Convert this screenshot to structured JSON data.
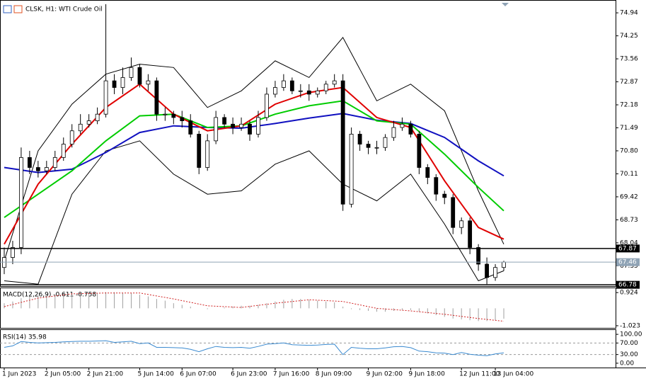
{
  "chart_data": [
    {
      "type": "candlestick",
      "title": "CLSK, H1: WTI Crude Oil",
      "categories": [
        "1 Jun 2023",
        null,
        null,
        null,
        null,
        "2 Jun 05:00",
        null,
        null,
        null,
        null,
        "2 Jun 21:00",
        null,
        null,
        null,
        null,
        null,
        "5 Jun 14:00",
        null,
        null,
        null,
        null,
        "6 Jun 07:00",
        null,
        null,
        null,
        null,
        null,
        "6 Jun 23:00",
        null,
        null,
        null,
        null,
        "7 Jun 16:00",
        null,
        null,
        null,
        null,
        "8 Jun 09:00",
        null,
        null,
        null,
        null,
        null,
        "9 Jun 02:00",
        null,
        null,
        null,
        null,
        "9 Jun 18:00",
        null,
        null,
        null,
        null,
        null,
        "12 Jun 11:00",
        null,
        null,
        null,
        "13 Jun 04:00",
        null
      ],
      "open": [
        67.3,
        67.6,
        67.9,
        70.6,
        70.3,
        70.2,
        70.3,
        70.6,
        71.0,
        71.4,
        71.6,
        71.7,
        71.9,
        72.9,
        72.7,
        73.0,
        73.3,
        72.8,
        72.9,
        71.9,
        71.9,
        71.8,
        71.7,
        71.3,
        70.3,
        71.1,
        71.8,
        71.6,
        71.5,
        71.6,
        71.3,
        71.8,
        72.5,
        72.7,
        72.9,
        72.6,
        72.6,
        72.5,
        72.6,
        72.8,
        72.9,
        69.2,
        71.3,
        71.0,
        70.9,
        70.9,
        71.2,
        71.5,
        71.6,
        71.3,
        70.3,
        70.0,
        69.5,
        69.4,
        68.5,
        68.7,
        67.9,
        67.4,
        67.0,
        67.3
      ],
      "high": [
        67.9,
        68.1,
        70.9,
        70.8,
        70.5,
        70.5,
        70.8,
        71.2,
        71.6,
        71.9,
        71.9,
        72.1,
        75.2,
        73.1,
        73.3,
        73.6,
        73.4,
        73.1,
        73.0,
        72.1,
        72.0,
        72.0,
        71.9,
        71.4,
        71.3,
        72.0,
        71.9,
        71.8,
        71.8,
        71.7,
        72.0,
        72.7,
        72.9,
        73.1,
        73.0,
        72.8,
        72.8,
        72.7,
        72.9,
        73.1,
        73.1,
        71.5,
        71.4,
        71.1,
        71.1,
        71.3,
        71.7,
        71.8,
        71.7,
        71.4,
        70.4,
        70.1,
        69.6,
        69.5,
        68.8,
        68.8,
        68.0,
        67.6,
        67.4,
        67.5
      ],
      "low": [
        67.1,
        67.4,
        67.7,
        70.1,
        70.0,
        70.1,
        70.2,
        70.5,
        70.9,
        71.3,
        71.5,
        71.6,
        71.8,
        72.5,
        72.5,
        72.9,
        72.7,
        72.6,
        71.7,
        71.7,
        71.6,
        71.5,
        71.2,
        70.1,
        70.2,
        71.0,
        71.5,
        71.3,
        71.4,
        71.1,
        71.2,
        71.7,
        72.4,
        72.6,
        72.5,
        72.4,
        72.3,
        72.4,
        72.5,
        72.7,
        69.0,
        69.1,
        70.8,
        70.7,
        70.7,
        70.8,
        71.1,
        71.4,
        71.2,
        70.1,
        69.8,
        69.3,
        69.2,
        68.3,
        68.3,
        67.7,
        67.2,
        66.8,
        66.9,
        67.2
      ],
      "close": [
        67.6,
        67.9,
        70.6,
        70.3,
        70.2,
        70.3,
        70.6,
        71.0,
        71.4,
        71.6,
        71.7,
        71.9,
        72.9,
        72.7,
        73.0,
        73.3,
        72.8,
        72.9,
        71.9,
        71.9,
        71.8,
        71.7,
        71.3,
        70.3,
        71.1,
        71.8,
        71.6,
        71.5,
        71.6,
        71.3,
        71.8,
        72.5,
        72.7,
        72.9,
        72.6,
        72.6,
        72.5,
        72.6,
        72.8,
        72.9,
        69.2,
        71.3,
        71.0,
        70.9,
        70.9,
        71.2,
        71.5,
        71.6,
        71.3,
        70.3,
        70.0,
        69.5,
        69.4,
        68.5,
        68.7,
        67.9,
        67.4,
        67.0,
        67.3,
        67.46
      ],
      "candle_color": "#000000",
      "ylim": [
        66.72,
        75.24
      ],
      "yticks": [
        74.94,
        74.25,
        73.56,
        72.87,
        72.18,
        71.49,
        {
          "value": 70.8,
          "label": "70.80"
        },
        70.11,
        69.42,
        68.73,
        68.04,
        67.35
      ],
      "series": [
        {
          "color": "#000000",
          "x": [
            0,
            4,
            8,
            12,
            16,
            20,
            24,
            28,
            32,
            36,
            40,
            44,
            48,
            52,
            56,
            59
          ],
          "values": [
            67.5,
            70.8,
            72.2,
            73.1,
            73.4,
            73.3,
            72.1,
            72.6,
            73.5,
            73.0,
            74.2,
            72.3,
            72.8,
            72.0,
            69.6,
            68.0
          ]
        },
        {
          "color": "#000000",
          "x": [
            0,
            4,
            8,
            12,
            16,
            20,
            24,
            28,
            32,
            36,
            40,
            44,
            48,
            52,
            56,
            59
          ],
          "values": [
            66.9,
            66.8,
            69.5,
            70.8,
            71.1,
            70.1,
            69.5,
            69.6,
            70.4,
            70.8,
            69.8,
            69.3,
            70.1,
            68.6,
            66.9,
            67.2
          ]
        },
        {
          "color": "#1010c0",
          "x": [
            0,
            4,
            8,
            12,
            16,
            20,
            24,
            28,
            32,
            36,
            40,
            44,
            48,
            52,
            56,
            59
          ],
          "values": [
            70.3,
            70.15,
            70.25,
            70.75,
            71.35,
            71.55,
            71.5,
            71.48,
            71.62,
            71.78,
            71.92,
            71.72,
            71.62,
            71.2,
            70.5,
            70.05
          ]
        },
        {
          "color": "#00cc00",
          "x": [
            0,
            4,
            8,
            12,
            16,
            20,
            24,
            28,
            32,
            36,
            40,
            44,
            48,
            52,
            56,
            59
          ],
          "values": [
            68.8,
            69.5,
            70.2,
            71.1,
            71.85,
            71.9,
            71.5,
            71.55,
            71.9,
            72.15,
            72.3,
            71.7,
            71.6,
            70.7,
            69.7,
            69.0
          ]
        },
        {
          "color": "#e00000",
          "x": [
            0,
            4,
            8,
            12,
            16,
            20,
            24,
            28,
            32,
            36,
            40,
            44,
            48,
            52,
            56,
            59
          ],
          "values": [
            68.0,
            69.8,
            71.0,
            72.1,
            72.8,
            71.9,
            71.4,
            71.55,
            72.2,
            72.55,
            72.7,
            71.8,
            71.5,
            69.9,
            68.5,
            68.15
          ]
        }
      ],
      "levels": [
        67.87,
        67.46,
        66.78
      ],
      "level_colors": [
        "#000000",
        "#8fa3b5",
        "#000000"
      ]
    },
    {
      "type": "macd",
      "title": "MACD(12,26,9) -0.611 -0.758",
      "histogram": [
        0.3,
        0.4,
        0.6,
        0.7,
        0.75,
        0.8,
        0.8,
        0.85,
        0.9,
        0.9,
        0.9,
        0.9,
        0.95,
        0.95,
        0.9,
        0.9,
        0.8,
        0.7,
        0.55,
        0.45,
        0.3,
        0.2,
        0.1,
        0.0,
        -0.05,
        0.0,
        0.05,
        0.1,
        0.15,
        0.15,
        0.2,
        0.3,
        0.4,
        0.5,
        0.55,
        0.55,
        0.5,
        0.45,
        0.4,
        0.35,
        0.1,
        -0.05,
        -0.1,
        -0.15,
        -0.2,
        -0.2,
        -0.15,
        -0.1,
        -0.1,
        -0.2,
        -0.3,
        -0.4,
        -0.5,
        -0.6,
        -0.65,
        -0.7,
        -0.75,
        -0.75,
        -0.7,
        -0.611
      ],
      "histogram_color": "#a0a0a0",
      "signal": {
        "color": "#d02020",
        "x": [
          0,
          4,
          8,
          12,
          16,
          20,
          24,
          28,
          32,
          36,
          40,
          44,
          48,
          52,
          56,
          59
        ],
        "values": [
          0.1,
          0.6,
          0.85,
          0.9,
          0.9,
          0.55,
          0.15,
          0.05,
          0.3,
          0.5,
          0.4,
          0.0,
          -0.15,
          -0.35,
          -0.6,
          -0.758
        ]
      },
      "ylim": [
        -1.15,
        1.18
      ],
      "yticks": [
        0.924,
        -1.023
      ]
    },
    {
      "type": "line",
      "title": "RSI(14) 35.98",
      "values": [
        55,
        60,
        75,
        72,
        70,
        71,
        72,
        74,
        75,
        76,
        76,
        77,
        78,
        72,
        74,
        76,
        68,
        70,
        55,
        55,
        54,
        53,
        48,
        40,
        50,
        58,
        55,
        54,
        55,
        52,
        58,
        66,
        68,
        70,
        64,
        63,
        62,
        63,
        65,
        66,
        30,
        55,
        52,
        50,
        50,
        53,
        57,
        58,
        54,
        42,
        40,
        36,
        35,
        30,
        37,
        31,
        28,
        26,
        32,
        35.98
      ],
      "color": "#3a8ad0",
      "ylim": [
        -15,
        115
      ],
      "yticks": [
        {
          "value": 100,
          "label": "100.00"
        },
        {
          "value": 70,
          "label": "70.00"
        },
        {
          "value": 30,
          "label": "30.00"
        },
        {
          "value": 0,
          "label": "0.00"
        }
      ],
      "levels": [
        70,
        30
      ]
    }
  ]
}
